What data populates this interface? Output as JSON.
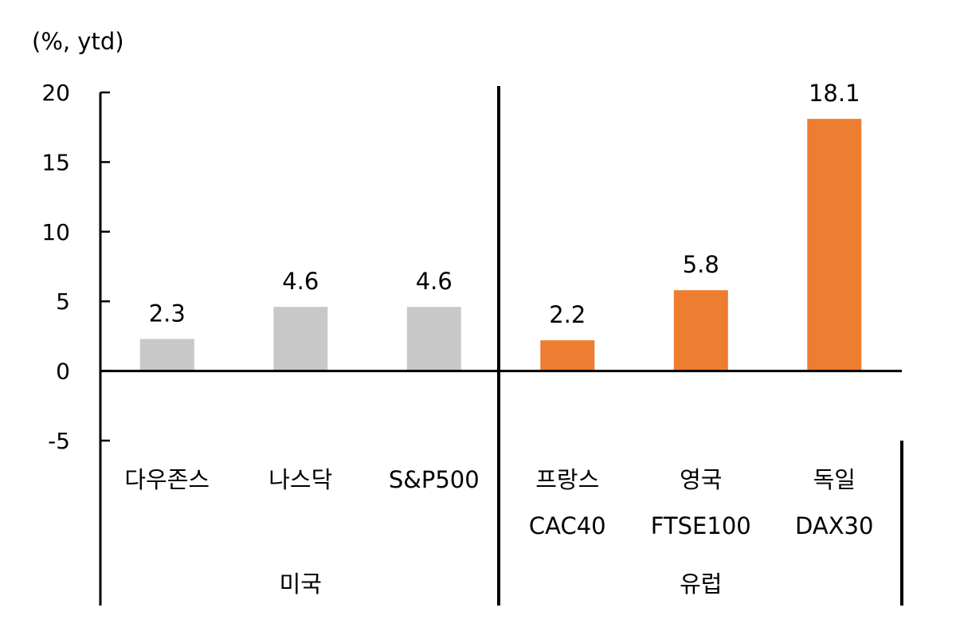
{
  "chart_data": {
    "type": "bar",
    "unit_label": "(%, ytd)",
    "ylim": [
      -5,
      20
    ],
    "yticks": [
      -5,
      0,
      5,
      10,
      15,
      20
    ],
    "ytick_labels": [
      "-5",
      "0",
      "5",
      "10",
      "15",
      "20"
    ],
    "grid": false,
    "legend": "none",
    "categories": [
      {
        "line1": "다우존스",
        "line2": "",
        "group": "미국",
        "value": 2.3,
        "value_label": "2.3",
        "color": "#c8c8c8"
      },
      {
        "line1": "나스닥",
        "line2": "",
        "group": "미국",
        "value": 4.6,
        "value_label": "4.6",
        "color": "#c8c8c8"
      },
      {
        "line1": "S&P500",
        "line2": "",
        "group": "미국",
        "value": 4.6,
        "value_label": "4.6",
        "color": "#c8c8c8"
      },
      {
        "line1": "프랑스",
        "line2": "CAC40",
        "group": "유럽",
        "value": 2.2,
        "value_label": "2.2",
        "color": "#ed7d31"
      },
      {
        "line1": "영국",
        "line2": "FTSE100",
        "group": "유럽",
        "value": 5.8,
        "value_label": "5.8",
        "color": "#ed7d31"
      },
      {
        "line1": "독일",
        "line2": "DAX30",
        "group": "유럽",
        "value": 18.1,
        "value_label": "18.1",
        "color": "#ed7d31"
      }
    ],
    "groups": [
      {
        "label": "미국",
        "count": 3
      },
      {
        "label": "유럽",
        "count": 3
      }
    ],
    "colors": {
      "us": "#c8c8c8",
      "europe": "#ed7d31",
      "axis": "#000000"
    }
  }
}
